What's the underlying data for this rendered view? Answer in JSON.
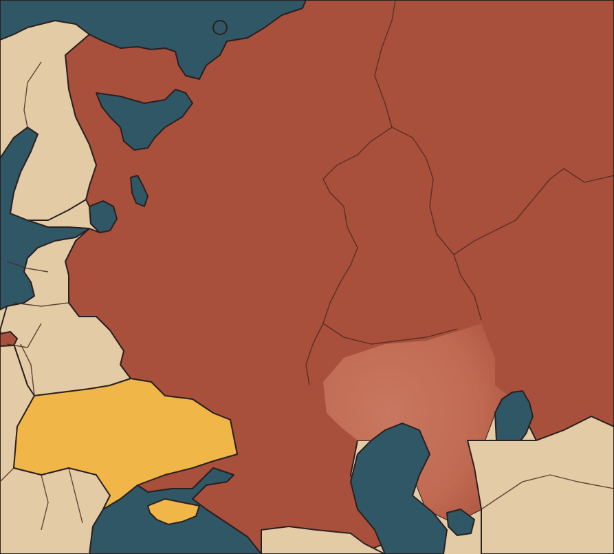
{
  "map": {
    "colors": {
      "water": "#2f5766",
      "land": "#e3cba6",
      "russia": "#a9503c",
      "russia_light": "#c5715a",
      "ukraine": "#f0b648",
      "border": "#4a2a1e"
    },
    "regions": [
      {
        "id": "russia",
        "fill": "russia",
        "highlight": true
      },
      {
        "id": "ukraine",
        "fill": "ukraine",
        "highlight": true
      },
      {
        "id": "crimea",
        "fill": "ukraine",
        "highlight": true
      },
      {
        "id": "kazakhstan-west",
        "fill": "russia_light",
        "highlight": false
      }
    ],
    "labels": []
  }
}
